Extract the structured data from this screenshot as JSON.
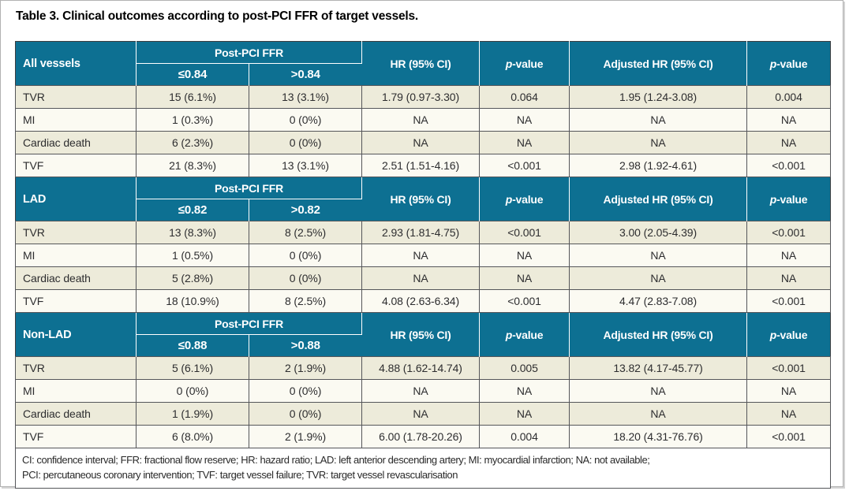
{
  "page": {
    "title": "Table 3. Clinical outcomes according to post-PCI FFR of target vessels."
  },
  "colors": {
    "header_bg": "#0d7092",
    "header_text": "#ffffff",
    "row_odd_bg": "#edebda",
    "row_even_bg": "#fbfaf2",
    "cell_border": "#55565a",
    "outer_border": "#3c3d3f",
    "frame_border": "#b2b2b2"
  },
  "header_labels": {
    "ffr_group": "Post-PCI FFR",
    "hr": "HR (95% CI)",
    "p_italic": "p",
    "p_rest": "-value",
    "adj_hr": "Adjusted HR (95% CI)"
  },
  "sections": [
    {
      "label": "All vessels",
      "ffr_low": "≤0.84",
      "ffr_high": ">0.84",
      "rows": [
        {
          "label": "TVR",
          "cells": [
            "15 (6.1%)",
            "13 (3.1%)",
            "1.79 (0.97-3.30)",
            "0.064",
            "1.95 (1.24-3.08)",
            "0.004"
          ]
        },
        {
          "label": "MI",
          "cells": [
            "1 (0.3%)",
            "0 (0%)",
            "NA",
            "NA",
            "NA",
            "NA"
          ]
        },
        {
          "label": "Cardiac death",
          "cells": [
            "6 (2.3%)",
            "0 (0%)",
            "NA",
            "NA",
            "NA",
            "NA"
          ]
        },
        {
          "label": "TVF",
          "cells": [
            "21 (8.3%)",
            "13 (3.1%)",
            "2.51 (1.51-4.16)",
            "<0.001",
            "2.98 (1.92-4.61)",
            "<0.001"
          ]
        }
      ]
    },
    {
      "label": "LAD",
      "ffr_low": "≤0.82",
      "ffr_high": ">0.82",
      "rows": [
        {
          "label": "TVR",
          "cells": [
            "13 (8.3%)",
            "8 (2.5%)",
            "2.93 (1.81-4.75)",
            "<0.001",
            "3.00 (2.05-4.39)",
            "<0.001"
          ]
        },
        {
          "label": "MI",
          "cells": [
            "1 (0.5%)",
            "0 (0%)",
            "NA",
            "NA",
            "NA",
            "NA"
          ]
        },
        {
          "label": "Cardiac death",
          "cells": [
            "5 (2.8%)",
            "0 (0%)",
            "NA",
            "NA",
            "NA",
            "NA"
          ]
        },
        {
          "label": "TVF",
          "cells": [
            "18 (10.9%)",
            "8 (2.5%)",
            "4.08 (2.63-6.34)",
            "<0.001",
            "4.47 (2.83-7.08)",
            "<0.001"
          ]
        }
      ]
    },
    {
      "label": "Non-LAD",
      "ffr_low": "≤0.88",
      "ffr_high": ">0.88",
      "rows": [
        {
          "label": "TVR",
          "cells": [
            "5 (6.1%)",
            "2 (1.9%)",
            "4.88 (1.62-14.74)",
            "0.005",
            "13.82 (4.17-45.77)",
            "<0.001"
          ]
        },
        {
          "label": "MI",
          "cells": [
            "0 (0%)",
            "0 (0%)",
            "NA",
            "NA",
            "NA",
            "NA"
          ]
        },
        {
          "label": "Cardiac death",
          "cells": [
            "1 (1.9%)",
            "0 (0%)",
            "NA",
            "NA",
            "NA",
            "NA"
          ]
        },
        {
          "label": "TVF",
          "cells": [
            "6 (8.0%)",
            "2 (1.9%)",
            "6.00 (1.78-20.26)",
            "0.004",
            "18.20 (4.31-76.76)",
            "<0.001"
          ]
        }
      ]
    }
  ],
  "footnote": {
    "line1": "CI: confidence interval; FFR: fractional flow reserve; HR: hazard ratio; LAD: left anterior descending artery; MI: myocardial infarction; NA: not available;",
    "line2": "PCI: percutaneous coronary intervention; TVF: target vessel failure; TVR: target vessel revascularisation"
  }
}
